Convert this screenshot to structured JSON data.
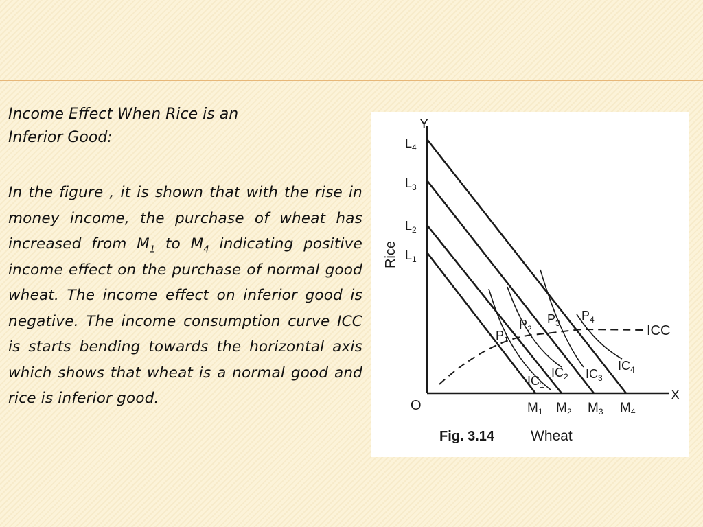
{
  "slide": {
    "heading_line1": "Income Effect When Rice is an",
    "heading_line2": "Inferior Good:",
    "body": {
      "part1": "In the figure , it is shown that with the rise in money income, the purchase of wheat has increased from M",
      "sub1": "1",
      "part2": " to M",
      "sub2": "4",
      "part3": " indicating positive income effect on the purchase of normal good wheat. The income effect on inferior good is negative. The income consumption curve ICC is starts bending towards the horizontal axis which shows that wheat is a normal good and rice is inferior good."
    }
  },
  "figure": {
    "y_axis_letter": "Y",
    "x_axis_letter": "X",
    "origin_label": "O",
    "y_axis_title": "Rice",
    "x_axis_title": "Wheat",
    "caption": "Fig. 3.14",
    "budget_lines": [
      {
        "label": "L",
        "sub": "1",
        "end_label": "M",
        "end_sub": "1"
      },
      {
        "label": "L",
        "sub": "2",
        "end_label": "M",
        "end_sub": "2"
      },
      {
        "label": "L",
        "sub": "3",
        "end_label": "M",
        "end_sub": "3"
      },
      {
        "label": "L",
        "sub": "4",
        "end_label": "M",
        "end_sub": "4"
      }
    ],
    "equilibrium_points": [
      {
        "label": "P",
        "sub": "1"
      },
      {
        "label": "P",
        "sub": "2"
      },
      {
        "label": "P",
        "sub": "3"
      },
      {
        "label": "P",
        "sub": "4"
      }
    ],
    "indifference_curves": [
      {
        "label": "IC",
        "sub": "1"
      },
      {
        "label": "IC",
        "sub": "2"
      },
      {
        "label": "IC",
        "sub": "3"
      },
      {
        "label": "IC",
        "sub": "4"
      }
    ],
    "icc_label": "ICC"
  }
}
